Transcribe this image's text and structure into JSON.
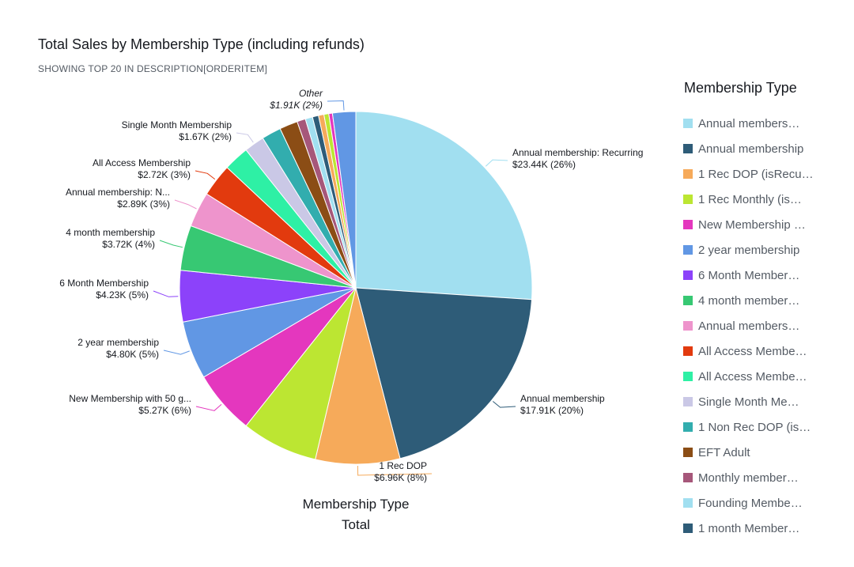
{
  "chart_data": {
    "type": "pie",
    "title": "Total Sales by Membership Type (including refunds)",
    "subtitle": "SHOWING TOP 20 IN DESCRIPTION[ORDERITEM]",
    "center_label": [
      "Membership Type",
      "Total"
    ],
    "legend_title": "Membership Type",
    "legend_placement": "right",
    "slices": [
      {
        "name": "Annual membership: Recurring",
        "legend": "Annual members…",
        "value": 23.44,
        "label_value": "$23.44K (26%)",
        "color": "#a1dff0"
      },
      {
        "name": "Annual membership",
        "legend": "Annual membership",
        "value": 17.91,
        "label_value": "$17.91K (20%)",
        "color": "#2e5c78"
      },
      {
        "name": "1 Rec DOP",
        "legend": "1 Rec DOP (isRecu…",
        "value": 6.96,
        "label_value": "$6.96K (8%)",
        "color": "#f6aa5a"
      },
      {
        "name": "1 Rec Monthly (is…",
        "legend": "1 Rec Monthly (is…",
        "value": 6.3,
        "label_value": "",
        "color": "#bce632"
      },
      {
        "name": "New Membership with 50 g...",
        "legend": "New Membership …",
        "value": 5.27,
        "label_value": "$5.27K (6%)",
        "color": "#e437be"
      },
      {
        "name": "2 year membership",
        "legend": "2 year membership",
        "value": 4.8,
        "label_value": "$4.80K (5%)",
        "color": "#6197e4"
      },
      {
        "name": "6 Month Membership",
        "legend": "6 Month Member…",
        "value": 4.23,
        "label_value": "$4.23K (5%)",
        "color": "#8c42fa"
      },
      {
        "name": "4 month membership",
        "legend": "4 month member…",
        "value": 3.72,
        "label_value": "$3.72K (4%)",
        "color": "#37c873"
      },
      {
        "name": "Annual membership: N...",
        "legend": "Annual members…",
        "value": 2.89,
        "label_value": "$2.89K (3%)",
        "color": "#ee94cc"
      },
      {
        "name": "All Access Membership",
        "legend": "All Access Membe…",
        "value": 2.72,
        "label_value": "$2.72K (3%)",
        "color": "#e23a0e"
      },
      {
        "name": "All Access Membe…",
        "legend": "All Access Membe…",
        "value": 2.1,
        "label_value": "",
        "color": "#2ef0a5"
      },
      {
        "name": "Single Month Membership",
        "legend": "Single Month Me…",
        "value": 1.67,
        "label_value": "$1.67K (2%)",
        "color": "#cac8e6"
      },
      {
        "name": "1 Non Rec DOP (is…",
        "legend": "1 Non Rec DOP (is…",
        "value": 1.6,
        "label_value": "",
        "color": "#32adae"
      },
      {
        "name": "EFT Adult",
        "legend": "EFT Adult",
        "value": 1.5,
        "label_value": "",
        "color": "#8b4d15"
      },
      {
        "name": "Monthly member…",
        "legend": "Monthly member…",
        "value": 0.7,
        "label_value": "",
        "color": "#a6577a"
      },
      {
        "name": "Founding Membe…",
        "legend": "Founding Membe…",
        "value": 0.6,
        "label_value": "",
        "color": "#a1dff0"
      },
      {
        "name": "1 month Member…",
        "legend": "1 month Member…",
        "value": 0.5,
        "label_value": "",
        "color": "#2e5c78"
      },
      {
        "name": "",
        "legend": "",
        "value": 0.45,
        "label_value": "",
        "color": "#f6aa5a"
      },
      {
        "name": "",
        "legend": "",
        "value": 0.4,
        "label_value": "",
        "color": "#bce632"
      },
      {
        "name": "",
        "legend": "",
        "value": 0.3,
        "label_value": "",
        "color": "#e437be"
      },
      {
        "name": "Other",
        "legend": "",
        "value": 1.91,
        "label_value": "$1.91K (2%)",
        "color": "#6197e4"
      }
    ]
  }
}
